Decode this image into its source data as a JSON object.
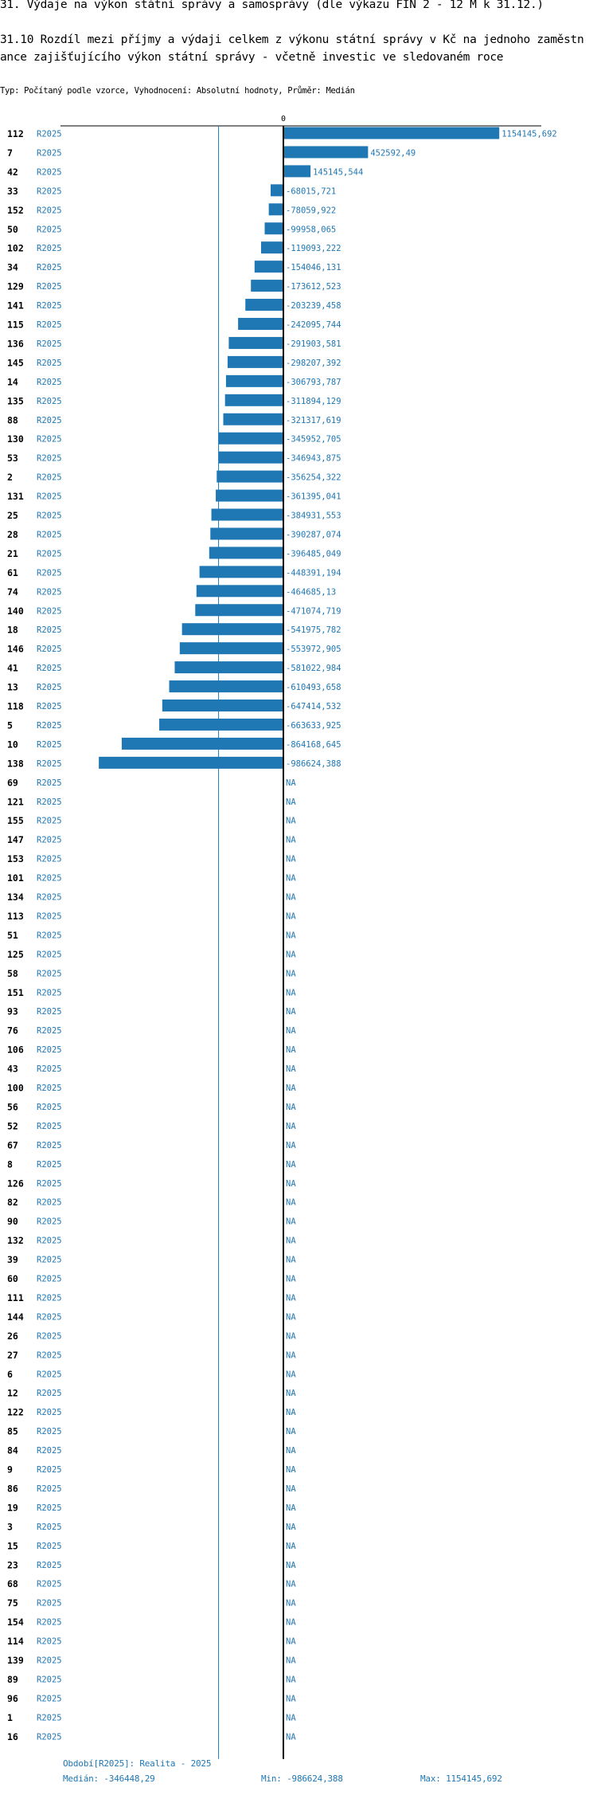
{
  "title": "31. Výdaje na výkon státní správy a samosprávy (dle výkazu FIN 2 - 12 M k 31.12.)",
  "subtitle": "31.10 Rozdíl mezi  příjmy a výdaji celkem z výkonu státní správy v Kč na jednoho zaměstnance zajišťujícího výkon státní správy - včetně investic ve sledovaném roce",
  "type_line": "Typ: Počítaný podle vzorce, Vyhodnocení: Absolutní hodnoty, Průměr: Medián",
  "footer": {
    "period": "Období[R2025]: Realita - 2025",
    "median": "Medián: -346448,29",
    "min": "Min: -986624,388",
    "max": "Max: 1154145,692"
  },
  "chart_data": {
    "type": "bar",
    "orientation": "horizontal",
    "zero_label": "0",
    "period": "R2025",
    "median": -346448.29,
    "xlim": [
      -1000000,
      1154145.692
    ],
    "colors": {
      "bar": "#1f77b4",
      "label": "#1f77b4",
      "median_line": "#1f77b4",
      "axis": "#000000"
    },
    "rows": [
      {
        "id": "112",
        "value": 1154145.692,
        "label": "1154145,692"
      },
      {
        "id": "7",
        "value": 452592.49,
        "label": "452592,49"
      },
      {
        "id": "42",
        "value": 145145.544,
        "label": "145145,544"
      },
      {
        "id": "33",
        "value": -68015.721,
        "label": "-68015,721"
      },
      {
        "id": "152",
        "value": -78059.922,
        "label": "-78059,922"
      },
      {
        "id": "50",
        "value": -99958.065,
        "label": "-99958,065"
      },
      {
        "id": "102",
        "value": -119093.222,
        "label": "-119093,222"
      },
      {
        "id": "34",
        "value": -154046.131,
        "label": "-154046,131"
      },
      {
        "id": "129",
        "value": -173612.523,
        "label": "-173612,523"
      },
      {
        "id": "141",
        "value": -203239.458,
        "label": "-203239,458"
      },
      {
        "id": "115",
        "value": -242095.744,
        "label": "-242095,744"
      },
      {
        "id": "136",
        "value": -291903.581,
        "label": "-291903,581"
      },
      {
        "id": "145",
        "value": -298207.392,
        "label": "-298207,392"
      },
      {
        "id": "14",
        "value": -306793.787,
        "label": "-306793,787"
      },
      {
        "id": "135",
        "value": -311894.129,
        "label": "-311894,129"
      },
      {
        "id": "88",
        "value": -321317.619,
        "label": "-321317,619"
      },
      {
        "id": "130",
        "value": -345952.705,
        "label": "-345952,705"
      },
      {
        "id": "53",
        "value": -346943.875,
        "label": "-346943,875"
      },
      {
        "id": "2",
        "value": -356254.322,
        "label": "-356254,322"
      },
      {
        "id": "131",
        "value": -361395.041,
        "label": "-361395,041"
      },
      {
        "id": "25",
        "value": -384931.553,
        "label": "-384931,553"
      },
      {
        "id": "28",
        "value": -390287.074,
        "label": "-390287,074"
      },
      {
        "id": "21",
        "value": -396485.049,
        "label": "-396485,049"
      },
      {
        "id": "61",
        "value": -448391.194,
        "label": "-448391,194"
      },
      {
        "id": "74",
        "value": -464685.13,
        "label": "-464685,13"
      },
      {
        "id": "140",
        "value": -471074.719,
        "label": "-471074,719"
      },
      {
        "id": "18",
        "value": -541975.782,
        "label": "-541975,782"
      },
      {
        "id": "146",
        "value": -553972.905,
        "label": "-553972,905"
      },
      {
        "id": "41",
        "value": -581022.984,
        "label": "-581022,984"
      },
      {
        "id": "13",
        "value": -610493.658,
        "label": "-610493,658"
      },
      {
        "id": "118",
        "value": -647414.532,
        "label": "-647414,532"
      },
      {
        "id": "5",
        "value": -663633.925,
        "label": "-663633,925"
      },
      {
        "id": "10",
        "value": -864168.645,
        "label": "-864168,645"
      },
      {
        "id": "138",
        "value": -986624.388,
        "label": "-986624,388"
      },
      {
        "id": "69",
        "value": null,
        "label": "NA"
      },
      {
        "id": "121",
        "value": null,
        "label": "NA"
      },
      {
        "id": "155",
        "value": null,
        "label": "NA"
      },
      {
        "id": "147",
        "value": null,
        "label": "NA"
      },
      {
        "id": "153",
        "value": null,
        "label": "NA"
      },
      {
        "id": "101",
        "value": null,
        "label": "NA"
      },
      {
        "id": "134",
        "value": null,
        "label": "NA"
      },
      {
        "id": "113",
        "value": null,
        "label": "NA"
      },
      {
        "id": "51",
        "value": null,
        "label": "NA"
      },
      {
        "id": "125",
        "value": null,
        "label": "NA"
      },
      {
        "id": "58",
        "value": null,
        "label": "NA"
      },
      {
        "id": "151",
        "value": null,
        "label": "NA"
      },
      {
        "id": "93",
        "value": null,
        "label": "NA"
      },
      {
        "id": "76",
        "value": null,
        "label": "NA"
      },
      {
        "id": "106",
        "value": null,
        "label": "NA"
      },
      {
        "id": "43",
        "value": null,
        "label": "NA"
      },
      {
        "id": "100",
        "value": null,
        "label": "NA"
      },
      {
        "id": "56",
        "value": null,
        "label": "NA"
      },
      {
        "id": "52",
        "value": null,
        "label": "NA"
      },
      {
        "id": "67",
        "value": null,
        "label": "NA"
      },
      {
        "id": "8",
        "value": null,
        "label": "NA"
      },
      {
        "id": "126",
        "value": null,
        "label": "NA"
      },
      {
        "id": "82",
        "value": null,
        "label": "NA"
      },
      {
        "id": "90",
        "value": null,
        "label": "NA"
      },
      {
        "id": "132",
        "value": null,
        "label": "NA"
      },
      {
        "id": "39",
        "value": null,
        "label": "NA"
      },
      {
        "id": "60",
        "value": null,
        "label": "NA"
      },
      {
        "id": "111",
        "value": null,
        "label": "NA"
      },
      {
        "id": "144",
        "value": null,
        "label": "NA"
      },
      {
        "id": "26",
        "value": null,
        "label": "NA"
      },
      {
        "id": "27",
        "value": null,
        "label": "NA"
      },
      {
        "id": "6",
        "value": null,
        "label": "NA"
      },
      {
        "id": "12",
        "value": null,
        "label": "NA"
      },
      {
        "id": "122",
        "value": null,
        "label": "NA"
      },
      {
        "id": "85",
        "value": null,
        "label": "NA"
      },
      {
        "id": "84",
        "value": null,
        "label": "NA"
      },
      {
        "id": "9",
        "value": null,
        "label": "NA"
      },
      {
        "id": "86",
        "value": null,
        "label": "NA"
      },
      {
        "id": "19",
        "value": null,
        "label": "NA"
      },
      {
        "id": "3",
        "value": null,
        "label": "NA"
      },
      {
        "id": "15",
        "value": null,
        "label": "NA"
      },
      {
        "id": "23",
        "value": null,
        "label": "NA"
      },
      {
        "id": "68",
        "value": null,
        "label": "NA"
      },
      {
        "id": "75",
        "value": null,
        "label": "NA"
      },
      {
        "id": "154",
        "value": null,
        "label": "NA"
      },
      {
        "id": "114",
        "value": null,
        "label": "NA"
      },
      {
        "id": "139",
        "value": null,
        "label": "NA"
      },
      {
        "id": "89",
        "value": null,
        "label": "NA"
      },
      {
        "id": "96",
        "value": null,
        "label": "NA"
      },
      {
        "id": "1",
        "value": null,
        "label": "NA"
      },
      {
        "id": "16",
        "value": null,
        "label": "NA"
      }
    ]
  }
}
